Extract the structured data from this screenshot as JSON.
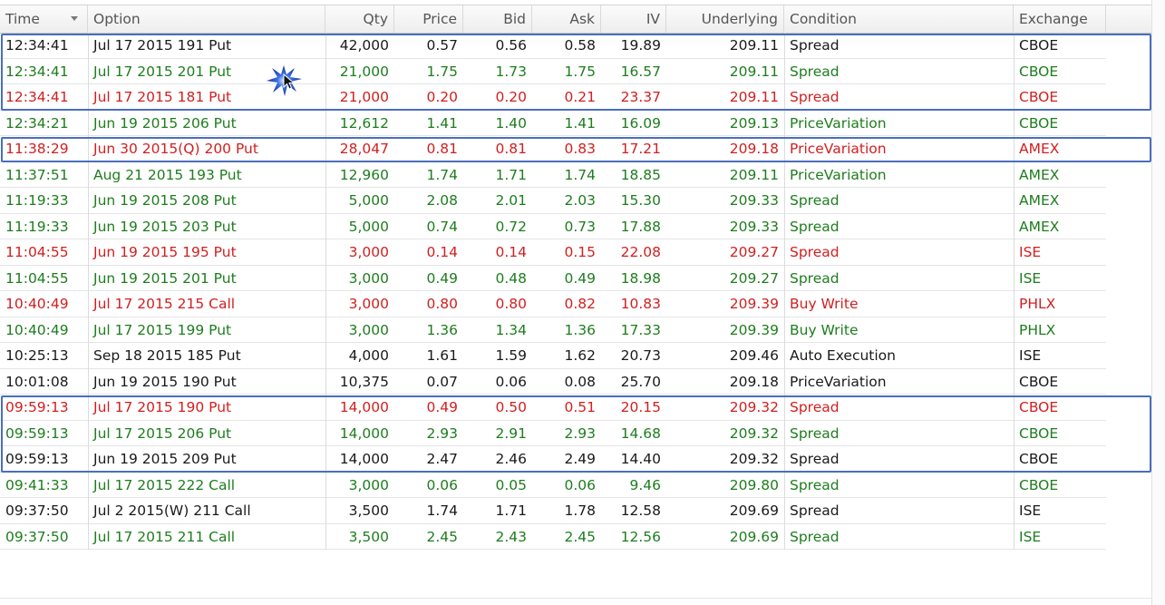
{
  "columns": [
    {
      "key": "time",
      "label": "Time"
    },
    {
      "key": "option",
      "label": "Option"
    },
    {
      "key": "qty",
      "label": "Qty"
    },
    {
      "key": "price",
      "label": "Price"
    },
    {
      "key": "bid",
      "label": "Bid"
    },
    {
      "key": "ask",
      "label": "Ask"
    },
    {
      "key": "iv",
      "label": "IV"
    },
    {
      "key": "underlying",
      "label": "Underlying"
    },
    {
      "key": "condition",
      "label": "Condition"
    },
    {
      "key": "exchange",
      "label": "Exchange"
    }
  ],
  "sort_icon": "chevron-down-icon",
  "colors": {
    "green": "#1e7d1e",
    "red": "#d21f1f",
    "black": "#1a1a1a",
    "highlight_border": "#4a6ebb"
  },
  "rows": [
    {
      "time": "12:34:41",
      "option": "Jul 17 2015 191 Put",
      "qty": "42,000",
      "price": "0.57",
      "bid": "0.56",
      "ask": "0.58",
      "iv": "19.89",
      "underlying": "209.11",
      "condition": "Spread",
      "exchange": "CBOE",
      "color": "black"
    },
    {
      "time": "12:34:41",
      "option": "Jul 17 2015 201 Put",
      "qty": "21,000",
      "price": "1.75",
      "bid": "1.73",
      "ask": "1.75",
      "iv": "16.57",
      "underlying": "209.11",
      "condition": "Spread",
      "exchange": "CBOE",
      "color": "green"
    },
    {
      "time": "12:34:41",
      "option": "Jul 17 2015 181 Put",
      "qty": "21,000",
      "price": "0.20",
      "bid": "0.20",
      "ask": "0.21",
      "iv": "23.37",
      "underlying": "209.11",
      "condition": "Spread",
      "exchange": "CBOE",
      "color": "red"
    },
    {
      "time": "12:34:21",
      "option": "Jun 19 2015 206 Put",
      "qty": "12,612",
      "price": "1.41",
      "bid": "1.40",
      "ask": "1.41",
      "iv": "16.09",
      "underlying": "209.13",
      "condition": "PriceVariation",
      "exchange": "CBOE",
      "color": "green"
    },
    {
      "time": "11:38:29",
      "option": "Jun 30 2015(Q) 200 Put",
      "qty": "28,047",
      "price": "0.81",
      "bid": "0.81",
      "ask": "0.83",
      "iv": "17.21",
      "underlying": "209.18",
      "condition": "PriceVariation",
      "exchange": "AMEX",
      "color": "red"
    },
    {
      "time": "11:37:51",
      "option": "Aug 21 2015 193 Put",
      "qty": "12,960",
      "price": "1.74",
      "bid": "1.71",
      "ask": "1.74",
      "iv": "18.85",
      "underlying": "209.11",
      "condition": "PriceVariation",
      "exchange": "AMEX",
      "color": "green"
    },
    {
      "time": "11:19:33",
      "option": "Jun 19 2015 208 Put",
      "qty": "5,000",
      "price": "2.08",
      "bid": "2.01",
      "ask": "2.03",
      "iv": "15.30",
      "underlying": "209.33",
      "condition": "Spread",
      "exchange": "AMEX",
      "color": "green"
    },
    {
      "time": "11:19:33",
      "option": "Jun 19 2015 203 Put",
      "qty": "5,000",
      "price": "0.74",
      "bid": "0.72",
      "ask": "0.73",
      "iv": "17.88",
      "underlying": "209.33",
      "condition": "Spread",
      "exchange": "AMEX",
      "color": "green"
    },
    {
      "time": "11:04:55",
      "option": "Jun 19 2015 195 Put",
      "qty": "3,000",
      "price": "0.14",
      "bid": "0.14",
      "ask": "0.15",
      "iv": "22.08",
      "underlying": "209.27",
      "condition": "Spread",
      "exchange": "ISE",
      "color": "red"
    },
    {
      "time": "11:04:55",
      "option": "Jun 19 2015 201 Put",
      "qty": "3,000",
      "price": "0.49",
      "bid": "0.48",
      "ask": "0.49",
      "iv": "18.98",
      "underlying": "209.27",
      "condition": "Spread",
      "exchange": "ISE",
      "color": "green"
    },
    {
      "time": "10:40:49",
      "option": "Jul 17 2015 215 Call",
      "qty": "3,000",
      "price": "0.80",
      "bid": "0.80",
      "ask": "0.82",
      "iv": "10.83",
      "underlying": "209.39",
      "condition": "Buy Write",
      "exchange": "PHLX",
      "color": "red"
    },
    {
      "time": "10:40:49",
      "option": "Jul 17 2015 199 Put",
      "qty": "3,000",
      "price": "1.36",
      "bid": "1.34",
      "ask": "1.36",
      "iv": "17.33",
      "underlying": "209.39",
      "condition": "Buy Write",
      "exchange": "PHLX",
      "color": "green"
    },
    {
      "time": "10:25:13",
      "option": "Sep 18 2015 185 Put",
      "qty": "4,000",
      "price": "1.61",
      "bid": "1.59",
      "ask": "1.62",
      "iv": "20.73",
      "underlying": "209.46",
      "condition": "Auto Execution",
      "exchange": "ISE",
      "color": "black"
    },
    {
      "time": "10:01:08",
      "option": "Jun 19 2015 190 Put",
      "qty": "10,375",
      "price": "0.07",
      "bid": "0.06",
      "ask": "0.08",
      "iv": "25.70",
      "underlying": "209.18",
      "condition": "PriceVariation",
      "exchange": "CBOE",
      "color": "black"
    },
    {
      "time": "09:59:13",
      "option": "Jul 17 2015 190 Put",
      "qty": "14,000",
      "price": "0.49",
      "bid": "0.50",
      "ask": "0.51",
      "iv": "20.15",
      "underlying": "209.32",
      "condition": "Spread",
      "exchange": "CBOE",
      "color": "red"
    },
    {
      "time": "09:59:13",
      "option": "Jul 17 2015 206 Put",
      "qty": "14,000",
      "price": "2.93",
      "bid": "2.91",
      "ask": "2.93",
      "iv": "14.68",
      "underlying": "209.32",
      "condition": "Spread",
      "exchange": "CBOE",
      "color": "green"
    },
    {
      "time": "09:59:13",
      "option": "Jun 19 2015 209 Put",
      "qty": "14,000",
      "price": "2.47",
      "bid": "2.46",
      "ask": "2.49",
      "iv": "14.40",
      "underlying": "209.32",
      "condition": "Spread",
      "exchange": "CBOE",
      "color": "black"
    },
    {
      "time": "09:41:33",
      "option": "Jul 17 2015 222 Call",
      "qty": "3,000",
      "price": "0.06",
      "bid": "0.05",
      "ask": "0.06",
      "iv": "9.46",
      "underlying": "209.80",
      "condition": "Spread",
      "exchange": "CBOE",
      "color": "green"
    },
    {
      "time": "09:37:50",
      "option": "Jul 2 2015(W) 211 Call",
      "qty": "3,500",
      "price": "1.74",
      "bid": "1.71",
      "ask": "1.78",
      "iv": "12.58",
      "underlying": "209.69",
      "condition": "Spread",
      "exchange": "ISE",
      "color": "black"
    },
    {
      "time": "09:37:50",
      "option": "Jul 17 2015 211 Call",
      "qty": "3,500",
      "price": "2.45",
      "bid": "2.43",
      "ask": "2.45",
      "iv": "12.56",
      "underlying": "209.69",
      "condition": "Spread",
      "exchange": "ISE",
      "color": "green"
    }
  ],
  "highlight_groups": [
    {
      "first_row": 0,
      "last_row": 2
    },
    {
      "first_row": 4,
      "last_row": 4
    },
    {
      "first_row": 14,
      "last_row": 16
    }
  ],
  "cursor_icon": "mouse-pointer-icon",
  "click_marker_icon": "starburst-icon"
}
